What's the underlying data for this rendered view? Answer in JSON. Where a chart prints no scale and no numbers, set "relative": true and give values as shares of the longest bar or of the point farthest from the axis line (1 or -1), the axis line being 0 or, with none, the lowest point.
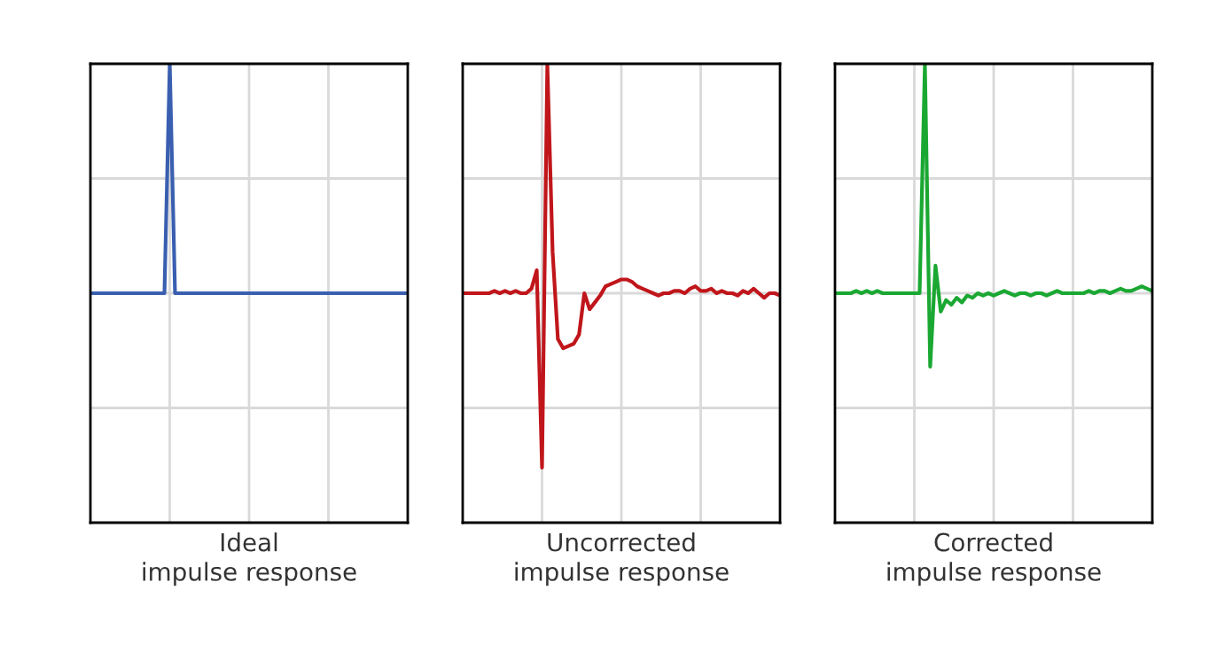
{
  "chart_data": [
    {
      "type": "line",
      "relative": true,
      "grid": true,
      "tick_labels": false,
      "xlabel": "Ideal\nimpulse response",
      "categories": [
        null,
        null,
        null,
        null,
        null,
        null,
        null,
        null,
        null,
        null,
        null,
        null,
        null,
        null,
        null,
        null,
        null,
        null,
        null,
        null,
        null,
        null,
        null,
        null,
        null,
        null,
        null,
        null,
        null,
        null,
        null,
        null,
        null,
        null,
        null,
        null,
        null,
        null,
        null,
        null,
        null,
        null,
        null,
        null,
        null,
        null,
        null,
        null,
        null,
        null,
        null,
        null,
        null,
        null,
        null,
        null,
        null,
        null,
        null,
        null,
        null
      ],
      "series": [
        {
          "color": "#3a5fb0",
          "values": [
            0,
            0,
            0,
            0,
            0,
            0,
            0,
            0,
            0,
            0,
            0,
            0,
            0,
            0,
            0,
            1,
            0,
            0,
            0,
            0,
            0,
            0,
            0,
            0,
            0,
            0,
            0,
            0,
            0,
            0,
            0,
            0,
            0,
            0,
            0,
            0,
            0,
            0,
            0,
            0,
            0,
            0,
            0,
            0,
            0,
            0,
            0,
            0,
            0,
            0,
            0,
            0,
            0,
            0,
            0,
            0,
            0,
            0,
            0,
            0,
            0
          ]
        }
      ]
    },
    {
      "type": "line",
      "relative": true,
      "grid": true,
      "tick_labels": false,
      "xlabel": "Uncorrected\nimpulse response",
      "categories": [
        null,
        null,
        null,
        null,
        null,
        null,
        null,
        null,
        null,
        null,
        null,
        null,
        null,
        null,
        null,
        null,
        null,
        null,
        null,
        null,
        null,
        null,
        null,
        null,
        null,
        null,
        null,
        null,
        null,
        null,
        null,
        null,
        null,
        null,
        null,
        null,
        null,
        null,
        null,
        null,
        null,
        null,
        null,
        null,
        null,
        null,
        null,
        null,
        null,
        null,
        null,
        null,
        null,
        null,
        null,
        null,
        null,
        null,
        null,
        null,
        null
      ],
      "series": [
        {
          "color": "#c0161b",
          "values": [
            0,
            0,
            0,
            0,
            0,
            0,
            0.01,
            0,
            0.01,
            0,
            0.01,
            0,
            0,
            0.02,
            0.1,
            -0.76,
            1,
            0.18,
            -0.2,
            -0.24,
            -0.23,
            -0.22,
            -0.18,
            0,
            -0.07,
            -0.04,
            -0.01,
            0.03,
            0.04,
            0.05,
            0.06,
            0.06,
            0.05,
            0.03,
            0.02,
            0.01,
            0,
            -0.01,
            0,
            0,
            0.01,
            0.01,
            0,
            0.02,
            0.03,
            0.01,
            0.01,
            0.02,
            0,
            0.01,
            0,
            0,
            -0.01,
            0.01,
            0,
            0.02,
            0,
            -0.02,
            0,
            0,
            -0.01
          ]
        }
      ]
    },
    {
      "type": "line",
      "relative": true,
      "grid": true,
      "tick_labels": false,
      "xlabel": "Corrected\nimpulse response",
      "categories": [
        null,
        null,
        null,
        null,
        null,
        null,
        null,
        null,
        null,
        null,
        null,
        null,
        null,
        null,
        null,
        null,
        null,
        null,
        null,
        null,
        null,
        null,
        null,
        null,
        null,
        null,
        null,
        null,
        null,
        null,
        null,
        null,
        null,
        null,
        null,
        null,
        null,
        null,
        null,
        null,
        null,
        null,
        null,
        null,
        null,
        null,
        null,
        null,
        null,
        null,
        null,
        null,
        null,
        null,
        null,
        null,
        null,
        null,
        null,
        null,
        null
      ],
      "series": [
        {
          "color": "#1aa832",
          "values": [
            0,
            0,
            0,
            0,
            0.01,
            0,
            0.01,
            0,
            0.01,
            0,
            0,
            0,
            0,
            0,
            0,
            0,
            0,
            1,
            -0.32,
            0.12,
            -0.08,
            -0.03,
            -0.05,
            -0.02,
            -0.04,
            -0.01,
            -0.02,
            0,
            -0.01,
            0,
            -0.01,
            0,
            0.01,
            0,
            -0.01,
            0,
            0,
            -0.01,
            0,
            0,
            -0.01,
            0,
            0.01,
            0,
            0,
            0,
            0,
            0,
            0.01,
            0,
            0.01,
            0.01,
            0,
            0.01,
            0.02,
            0.01,
            0.01,
            0.02,
            0.03,
            0.02,
            0.01
          ]
        }
      ]
    }
  ]
}
